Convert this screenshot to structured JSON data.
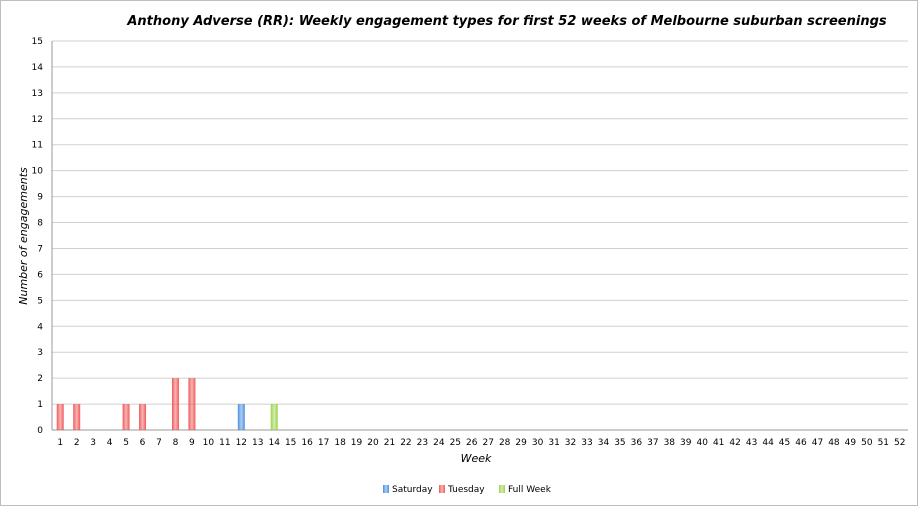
{
  "chart_data": {
    "type": "bar",
    "stacked": true,
    "title": "Anthony Adverse (RR): Weekly engagement types for first 52 weeks of Melbourne suburban screenings",
    "xlabel": "Week",
    "ylabel": "Number of engagements",
    "ylim": [
      0,
      15
    ],
    "grid": true,
    "legend_position": "bottom",
    "categories": [
      "1",
      "2",
      "3",
      "4",
      "5",
      "6",
      "7",
      "8",
      "9",
      "10",
      "11",
      "12",
      "13",
      "14",
      "15",
      "16",
      "17",
      "18",
      "19",
      "20",
      "21",
      "22",
      "23",
      "24",
      "25",
      "26",
      "27",
      "28",
      "29",
      "30",
      "31",
      "32",
      "33",
      "34",
      "35",
      "36",
      "37",
      "38",
      "39",
      "40",
      "41",
      "42",
      "43",
      "44",
      "45",
      "46",
      "47",
      "48",
      "49",
      "50",
      "51",
      "52"
    ],
    "series": [
      {
        "name": "Saturday",
        "color": "#4a90e2",
        "values": [
          0,
          0,
          0,
          0,
          0,
          0,
          0,
          0,
          0,
          0,
          0,
          1,
          0,
          0,
          0,
          0,
          0,
          0,
          0,
          0,
          0,
          0,
          0,
          0,
          0,
          0,
          0,
          0,
          0,
          0,
          0,
          0,
          0,
          0,
          0,
          0,
          0,
          0,
          0,
          0,
          0,
          0,
          0,
          0,
          0,
          0,
          0,
          0,
          0,
          0,
          0,
          0
        ]
      },
      {
        "name": "Tuesday",
        "color": "#f05a5a",
        "values": [
          1,
          1,
          0,
          0,
          1,
          1,
          0,
          2,
          2,
          0,
          0,
          0,
          0,
          0,
          0,
          0,
          0,
          0,
          0,
          0,
          0,
          0,
          0,
          0,
          0,
          0,
          0,
          0,
          0,
          0,
          0,
          0,
          0,
          0,
          0,
          0,
          0,
          0,
          0,
          0,
          0,
          0,
          0,
          0,
          0,
          0,
          0,
          0,
          0,
          0,
          0,
          0
        ]
      },
      {
        "name": "Full Week",
        "color": "#9ad44a",
        "values": [
          0,
          0,
          0,
          0,
          0,
          0,
          0,
          0,
          0,
          0,
          0,
          0,
          0,
          1,
          0,
          0,
          0,
          0,
          0,
          0,
          0,
          0,
          0,
          0,
          0,
          0,
          0,
          0,
          0,
          0,
          0,
          0,
          0,
          0,
          0,
          0,
          0,
          0,
          0,
          0,
          0,
          0,
          0,
          0,
          0,
          0,
          0,
          0,
          0,
          0,
          0,
          0
        ]
      }
    ]
  }
}
